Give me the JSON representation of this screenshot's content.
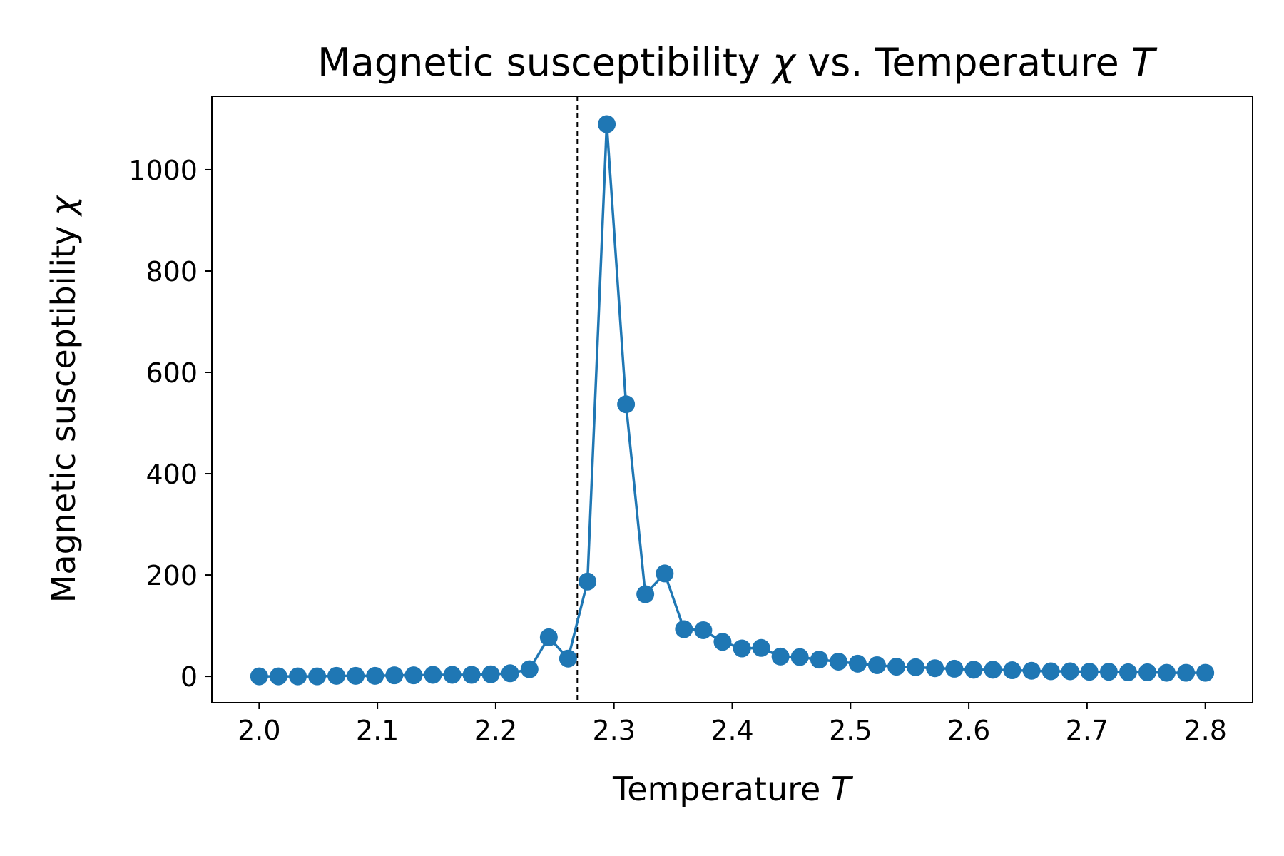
{
  "chart_data": {
    "type": "line",
    "title": "Magnetic susceptibility χ vs. Temperature T",
    "title_parts": {
      "before": "Magnetic susceptibility ",
      "symbol1": "χ",
      "middle": " vs. Temperature ",
      "symbol2": "T"
    },
    "xlabel": "Temperature T",
    "xlabel_parts": {
      "text": "Temperature ",
      "symbol": "T"
    },
    "ylabel": "Magnetic susceptibility χ",
    "ylabel_parts": {
      "text": "Magnetic susceptibility ",
      "symbol": "χ"
    },
    "xlim": [
      1.96,
      2.84
    ],
    "ylim": [
      -52,
      1145
    ],
    "xticks": [
      2.0,
      2.1,
      2.2,
      2.3,
      2.4,
      2.5,
      2.6,
      2.7,
      2.8
    ],
    "xtick_labels": [
      "2.0",
      "2.1",
      "2.2",
      "2.3",
      "2.4",
      "2.5",
      "2.6",
      "2.7",
      "2.8"
    ],
    "yticks": [
      0,
      200,
      400,
      600,
      800,
      1000
    ],
    "ytick_labels": [
      "0",
      "200",
      "400",
      "600",
      "800",
      "1000"
    ],
    "grid": false,
    "reference_line": {
      "x": 2.269,
      "style": "dashed",
      "color": "#000000"
    },
    "series": [
      {
        "color": "#1f77b4",
        "marker": "circle",
        "x": [
          2.0,
          2.0163,
          2.0327,
          2.049,
          2.0653,
          2.0816,
          2.098,
          2.1143,
          2.1306,
          2.1469,
          2.1633,
          2.1796,
          2.1959,
          2.2122,
          2.2286,
          2.2449,
          2.2612,
          2.2776,
          2.2939,
          2.3102,
          2.3265,
          2.3429,
          2.3592,
          2.3755,
          2.3918,
          2.4082,
          2.4245,
          2.4408,
          2.4571,
          2.4735,
          2.4898,
          2.5061,
          2.5224,
          2.5388,
          2.5551,
          2.5714,
          2.5878,
          2.6041,
          2.6204,
          2.6367,
          2.6531,
          2.6694,
          2.6857,
          2.702,
          2.7184,
          2.7347,
          2.751,
          2.7673,
          2.7837,
          2.8
        ],
        "y": [
          0,
          0,
          0,
          0,
          1,
          1,
          1,
          2,
          2,
          3,
          3,
          3,
          4,
          6,
          14,
          77,
          35,
          187,
          1090,
          537,
          162,
          203,
          93,
          91,
          68,
          55,
          56,
          39,
          38,
          33,
          29,
          25,
          22,
          19,
          18,
          16,
          15,
          13,
          13,
          12,
          11,
          10,
          10,
          9,
          9,
          8,
          8,
          7,
          7,
          7
        ]
      }
    ]
  }
}
